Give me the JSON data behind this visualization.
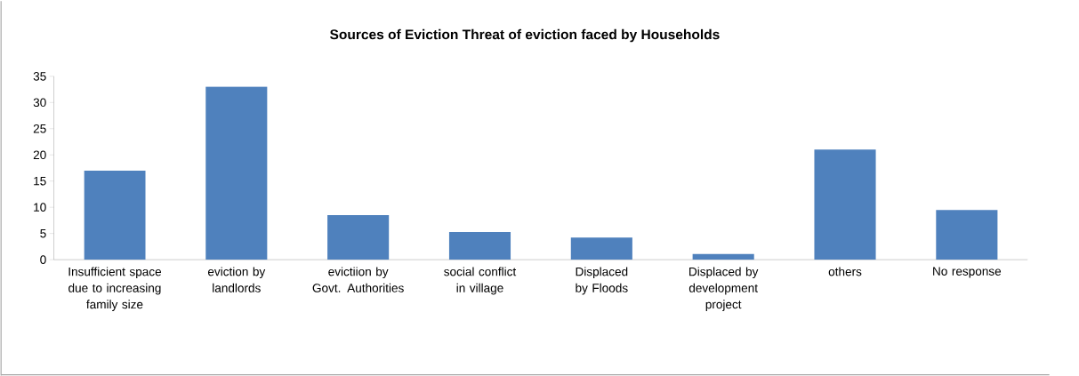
{
  "chart_data": {
    "type": "bar",
    "title": "Sources of Eviction Threat of eviction faced by Households",
    "categories": [
      "Insufficient space due to increasing family size",
      "eviction by landlords",
      "evictiion by Govt. Authorities",
      "social conflict in village",
      "Displaced by Floods",
      "Displaced by development project",
      "others",
      "No response"
    ],
    "values": [
      17,
      33,
      8.5,
      5.3,
      4.2,
      1.1,
      21,
      9.5
    ],
    "color": "#4f81bd",
    "ylim": [
      0,
      35
    ],
    "yticks": [
      0,
      5,
      10,
      15,
      20,
      25,
      30,
      35
    ],
    "grid": false
  }
}
